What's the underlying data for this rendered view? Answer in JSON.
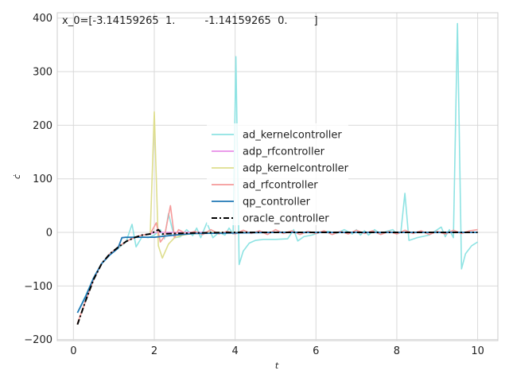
{
  "chart_data": {
    "type": "line",
    "title": "",
    "annotation": "x_0=[-3.14159265  1.         -1.14159265  0.        ]",
    "xlabel": "t",
    "ylabel": "ċ",
    "xlim": [
      -0.4,
      10.5
    ],
    "ylim": [
      -202,
      410
    ],
    "xticks": [
      0,
      2,
      4,
      6,
      8,
      10
    ],
    "yticks": [
      -200,
      -100,
      0,
      100,
      200,
      300,
      400
    ],
    "grid": true,
    "legend_position": "center",
    "series": [
      {
        "name": "ad_kernelcontroller",
        "color": "#8ee3e3",
        "dash": "solid",
        "x": [
          0.1,
          0.3,
          0.5,
          0.7,
          0.9,
          1.1,
          1.3,
          1.45,
          1.55,
          1.7,
          1.85,
          2.0,
          2.15,
          2.25,
          2.35,
          2.5,
          2.65,
          2.8,
          2.95,
          3.05,
          3.15,
          3.3,
          3.45,
          3.6,
          3.75,
          3.85,
          3.95,
          4.02,
          4.1,
          4.2,
          4.35,
          4.5,
          4.7,
          5.0,
          5.3,
          5.45,
          5.55,
          5.7,
          5.9,
          6.1,
          6.3,
          6.5,
          6.7,
          6.9,
          7.0,
          7.1,
          7.2,
          7.3,
          7.45,
          7.6,
          7.75,
          7.9,
          8.0,
          8.1,
          8.2,
          8.3,
          8.5,
          8.8,
          9.1,
          9.2,
          9.3,
          9.4,
          9.5,
          9.6,
          9.7,
          9.85,
          10.0
        ],
        "values": [
          -150,
          -118,
          -85,
          -58,
          -42,
          -30,
          -18,
          15,
          -27,
          -8,
          -10,
          -5,
          5,
          -12,
          35,
          -10,
          -8,
          5,
          -6,
          8,
          -10,
          18,
          -10,
          0,
          -5,
          8,
          -3,
          328,
          -60,
          -35,
          -20,
          -15,
          -13,
          -13,
          -12,
          5,
          -16,
          -8,
          -5,
          0,
          2,
          -2,
          5,
          -3,
          5,
          -5,
          3,
          -5,
          5,
          -3,
          2,
          5,
          -3,
          0,
          73,
          -15,
          -10,
          -5,
          10,
          -8,
          5,
          -10,
          390,
          -68,
          -40,
          -25,
          -18
        ]
      },
      {
        "name": "adp_rfcontroller",
        "color": "#e78ee7",
        "dash": "solid",
        "x": [
          0.1,
          0.3,
          0.5,
          0.7,
          0.9,
          1.1,
          1.3,
          1.5,
          1.7,
          1.9,
          2.0,
          2.2,
          2.5,
          3.0,
          4.0,
          5.0,
          6.0,
          7.0,
          8.0,
          9.0,
          10.0
        ],
        "values": [
          -170,
          -128,
          -88,
          -58,
          -40,
          -28,
          -17,
          -10,
          -5,
          -3,
          0,
          0,
          0,
          0,
          0,
          0,
          0,
          0,
          0,
          0,
          0
        ]
      },
      {
        "name": "adp_kernelcontroller",
        "color": "#dede8e",
        "dash": "solid",
        "x": [
          0.1,
          0.3,
          0.5,
          0.7,
          0.9,
          1.1,
          1.3,
          1.5,
          1.7,
          1.9,
          2.0,
          2.1,
          2.2,
          2.35,
          2.5,
          2.7,
          2.9,
          3.1,
          3.3,
          3.6,
          4.0,
          5.0,
          6.0,
          7.0,
          8.0,
          9.0,
          10.0
        ],
        "values": [
          -170,
          -128,
          -88,
          -58,
          -40,
          -28,
          -17,
          -10,
          -5,
          -3,
          225,
          -25,
          -48,
          -22,
          -10,
          -5,
          -3,
          -2,
          0,
          0,
          0,
          0,
          0,
          0,
          0,
          0,
          0
        ]
      },
      {
        "name": "ad_rfcontroller",
        "color": "#f59a9a",
        "dash": "solid",
        "x": [
          0.1,
          0.3,
          0.5,
          0.7,
          0.9,
          1.1,
          1.3,
          1.5,
          1.7,
          1.9,
          2.05,
          2.15,
          2.25,
          2.4,
          2.5,
          2.6,
          2.8,
          3.0,
          3.2,
          3.4,
          3.6,
          3.8,
          4.0,
          4.2,
          4.4,
          4.6,
          4.8,
          5.0,
          5.2,
          5.4,
          5.6,
          5.8,
          6.0,
          6.2,
          6.4,
          6.6,
          6.8,
          7.0,
          7.2,
          7.4,
          7.6,
          7.8,
          8.0,
          8.2,
          8.4,
          8.6,
          8.8,
          9.0,
          9.2,
          9.4,
          9.6,
          9.8,
          10.0
        ],
        "values": [
          -170,
          -128,
          -88,
          -58,
          -40,
          -28,
          -17,
          -10,
          -5,
          -3,
          18,
          -18,
          -8,
          50,
          -10,
          5,
          -3,
          2,
          -4,
          5,
          -3,
          2,
          -3,
          4,
          -2,
          3,
          -4,
          5,
          -2,
          3,
          -4,
          2,
          -2,
          3,
          -4,
          2,
          -3,
          4,
          -2,
          3,
          -4,
          2,
          -3,
          4,
          -2,
          3,
          -4,
          2,
          -3,
          4,
          -2,
          3,
          5
        ]
      },
      {
        "name": "qp_controller",
        "color": "#1f77b4",
        "dash": "solid",
        "x": [
          0.1,
          0.3,
          0.5,
          0.7,
          0.9,
          1.1,
          1.2,
          1.3,
          1.6,
          2.0,
          2.5,
          3.0,
          4.0,
          5.0,
          6.0,
          7.0,
          8.0,
          9.0,
          10.0
        ],
        "values": [
          -150,
          -120,
          -85,
          -58,
          -42,
          -30,
          -10,
          -9,
          -9,
          -9,
          -5,
          -2,
          -1,
          0,
          0,
          0,
          0,
          0,
          0
        ]
      },
      {
        "name": "oracle_controller",
        "color": "#000000",
        "dash": "dashdot",
        "x": [
          0.1,
          0.3,
          0.5,
          0.7,
          0.9,
          1.1,
          1.3,
          1.5,
          1.7,
          1.9,
          2.0,
          2.1,
          2.2,
          2.5,
          3.0,
          4.0,
          5.0,
          6.0,
          7.0,
          8.0,
          9.0,
          10.0
        ],
        "values": [
          -172,
          -128,
          -88,
          -58,
          -40,
          -28,
          -17,
          -10,
          -5,
          -3,
          1,
          5,
          -3,
          -2,
          -1,
          0,
          0,
          0,
          0,
          0,
          0,
          0
        ]
      }
    ]
  }
}
